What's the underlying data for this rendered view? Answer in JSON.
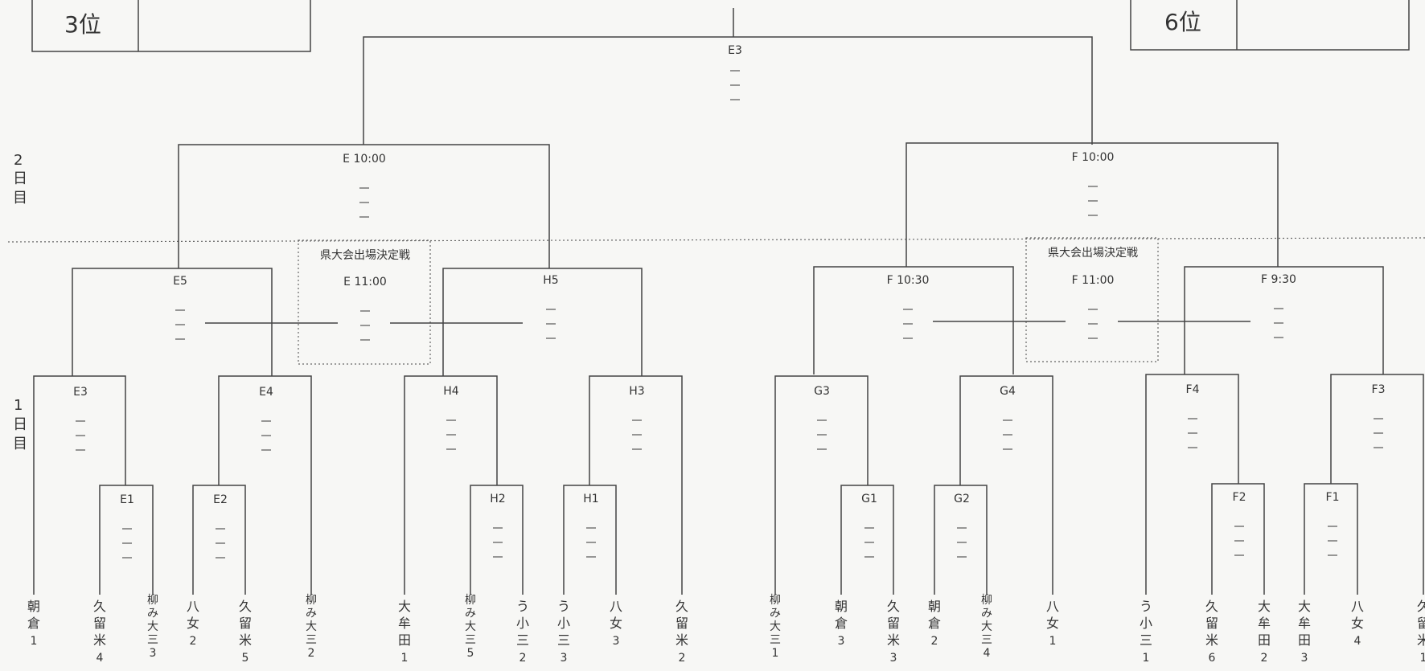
{
  "rank_boxes": {
    "left": "3位",
    "right": "6位"
  },
  "day_labels": {
    "day2": "2日目",
    "day1": "1日目"
  },
  "playoff_label": "県大会出場決定戦",
  "matches": {
    "final_e3": "E3",
    "e_top": "E 10:00",
    "f_top": "F 10:00",
    "e5": "E5",
    "h5": "H5",
    "e_playoff": "E 11:00",
    "f1030": "F 10:30",
    "f_playoff": "F 11:00",
    "f930": "F 9:30",
    "e3": "E3",
    "e4": "E4",
    "h4": "H4",
    "h3": "H3",
    "g3": "G3",
    "g4": "G4",
    "f4": "F4",
    "f3": "F3",
    "e1": "E1",
    "e2": "E2",
    "h2": "H2",
    "h1": "H1",
    "g1": "G1",
    "g2": "G2",
    "f2": "F2",
    "f1": "F1"
  },
  "teams": [
    {
      "name": "朝倉",
      "num": "1"
    },
    {
      "name": "久留米",
      "num": "4"
    },
    {
      "name": "柳み大三",
      "num": "3"
    },
    {
      "name": "八女",
      "num": "2"
    },
    {
      "name": "久留米",
      "num": "5"
    },
    {
      "name": "柳み大三",
      "num": "2"
    },
    {
      "name": "大牟田",
      "num": "1"
    },
    {
      "name": "柳み大三",
      "num": "5"
    },
    {
      "name": "う小三",
      "num": "2"
    },
    {
      "name": "う小三",
      "num": "3"
    },
    {
      "name": "八女",
      "num": "3"
    },
    {
      "name": "久留米",
      "num": "2"
    },
    {
      "name": "柳み大三",
      "num": "1"
    },
    {
      "name": "朝倉",
      "num": "3"
    },
    {
      "name": "久留米",
      "num": "3"
    },
    {
      "name": "朝倉",
      "num": "2"
    },
    {
      "name": "柳み大三",
      "num": "4"
    },
    {
      "name": "八女",
      "num": "1"
    },
    {
      "name": "う小三",
      "num": "1"
    },
    {
      "name": "久留米",
      "num": "6"
    },
    {
      "name": "大牟田",
      "num": "2"
    },
    {
      "name": "大牟田",
      "num": "3"
    },
    {
      "name": "八女",
      "num": "4"
    },
    {
      "name": "久留米",
      "num": "1"
    }
  ]
}
